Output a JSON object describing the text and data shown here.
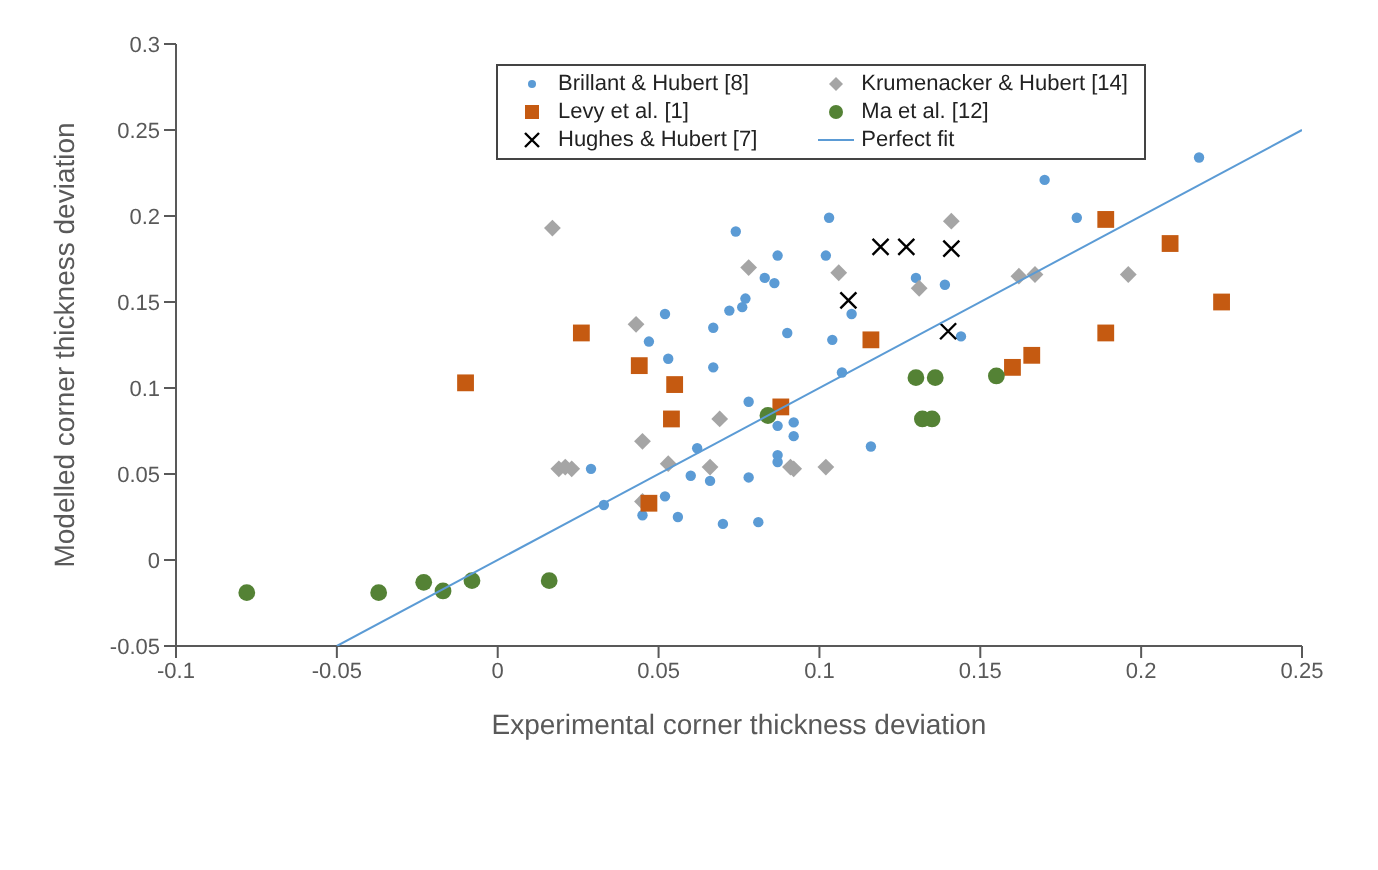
{
  "chart_data": {
    "type": "scatter",
    "xlabel": "Experimental corner thickness deviation",
    "ylabel": "Modelled corner thickness deviation",
    "xlim": [
      -0.1,
      0.25
    ],
    "xticks": [
      -0.1,
      -0.05,
      0,
      0.05,
      0.1,
      0.15,
      0.2,
      0.25
    ],
    "ylim": [
      -0.05,
      0.3
    ],
    "yticks": [
      -0.05,
      0,
      0.05,
      0.1,
      0.15,
      0.2,
      0.25,
      0.3
    ],
    "legend": "top",
    "series": [
      {
        "name": "Brillant & Hubert [8]",
        "color": "#5b9bd5",
        "marker": "circle",
        "x": [
          0.074,
          0.077,
          0.076,
          0.072,
          0.052,
          0.067,
          0.047,
          0.053,
          0.067,
          0.078,
          0.062,
          0.029,
          0.06,
          0.066,
          0.078,
          0.033,
          0.052,
          0.045,
          0.056,
          0.07,
          0.218,
          0.17,
          0.103,
          0.18,
          0.087,
          0.102,
          0.13,
          0.083,
          0.086,
          0.139,
          0.11,
          0.09,
          0.104,
          0.144,
          0.107,
          0.087,
          0.092,
          0.092,
          0.116,
          0.087,
          0.087,
          0.081
        ],
        "values": [
          0.191,
          0.152,
          0.147,
          0.145,
          0.143,
          0.135,
          0.127,
          0.117,
          0.112,
          0.092,
          0.065,
          0.053,
          0.049,
          0.046,
          0.048,
          0.032,
          0.037,
          0.026,
          0.025,
          0.021,
          0.234,
          0.221,
          0.199,
          0.199,
          0.177,
          0.177,
          0.164,
          0.164,
          0.161,
          0.16,
          0.143,
          0.132,
          0.128,
          0.13,
          0.109,
          0.078,
          0.08,
          0.072,
          0.066,
          0.061,
          0.057,
          0.022
        ]
      },
      {
        "name": "Krumenacker & Hubert [14]",
        "color": "#a5a5a5",
        "marker": "diamond",
        "x": [
          0.017,
          0.078,
          0.043,
          0.141,
          0.106,
          0.131,
          0.162,
          0.167,
          0.196,
          0.019,
          0.021,
          0.023,
          0.045,
          0.069,
          0.053,
          0.066,
          0.045,
          0.091,
          0.092,
          0.102
        ],
        "values": [
          0.193,
          0.17,
          0.137,
          0.197,
          0.167,
          0.158,
          0.165,
          0.166,
          0.166,
          0.053,
          0.054,
          0.053,
          0.069,
          0.082,
          0.056,
          0.054,
          0.034,
          0.054,
          0.053,
          0.054
        ]
      },
      {
        "name": "Levy et al. [1]",
        "color": "#c55a11",
        "marker": "square",
        "x": [
          0.026,
          -0.01,
          0.044,
          0.055,
          0.054,
          0.047,
          0.189,
          0.209,
          0.225,
          0.189,
          0.116,
          0.088,
          0.16,
          0.166
        ],
        "values": [
          0.132,
          0.103,
          0.113,
          0.102,
          0.082,
          0.033,
          0.198,
          0.184,
          0.15,
          0.132,
          0.128,
          0.089,
          0.112,
          0.119
        ]
      },
      {
        "name": "Ma et al. [12]",
        "color": "#548235",
        "marker": "circle",
        "x": [
          -0.078,
          -0.037,
          -0.023,
          -0.017,
          -0.008,
          0.016,
          0.084,
          0.13,
          0.136,
          0.132,
          0.135,
          0.155
        ],
        "values": [
          -0.019,
          -0.019,
          -0.013,
          -0.018,
          -0.012,
          -0.012,
          0.084,
          0.106,
          0.106,
          0.082,
          0.082,
          0.107
        ]
      },
      {
        "name": "Hughes & Hubert [7]",
        "color": "#000000",
        "marker": "cross",
        "x": [
          0.119,
          0.127,
          0.141,
          0.109,
          0.14
        ],
        "values": [
          0.182,
          0.182,
          0.181,
          0.151,
          0.133
        ]
      },
      {
        "name": "Perfect fit",
        "type": "line",
        "color": "#5b9bd5",
        "marker": "none",
        "line_style": "solid",
        "x": [
          -0.05,
          0.25
        ],
        "values": [
          -0.05,
          0.25
        ]
      }
    ]
  }
}
